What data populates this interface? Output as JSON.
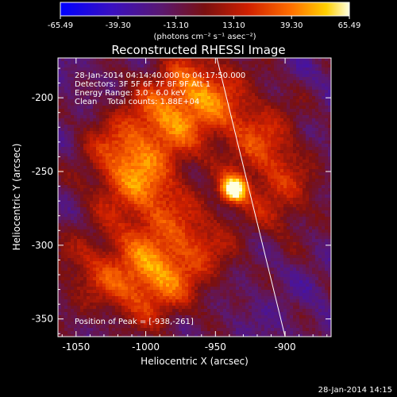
{
  "colorbar": {
    "ticks": [
      "-65.49",
      "-39.30",
      "-13.10",
      "13.10",
      "39.30",
      "65.49"
    ],
    "units": "(photons cm⁻² s⁻¹ asec⁻²)",
    "range": [
      -65.49,
      65.49
    ]
  },
  "chart_data": {
    "type": "heatmap",
    "title": "Reconstructed RHESSI Image",
    "xlabel": "Heliocentric X (arcsec)",
    "ylabel": "Heliocentric Y (arcsec)",
    "xlim": [
      -1063,
      -867
    ],
    "ylim": [
      -362,
      -173
    ],
    "x_ticks": [
      "-1050",
      "-1000",
      "-950",
      "-900"
    ],
    "y_ticks": [
      "-200",
      "-250",
      "-300",
      "-350"
    ],
    "info_lines": [
      "28-Jan-2014 04:14:40.000 to 04:17:50.000",
      "Detectors: 3F 5F 6F 7F 8F 9F Att 1",
      "Energy Range: 3.0 - 6.0 keV",
      "Clean    Total counts: 1.88E+04"
    ],
    "peak_label": "Position of Peak = [-938,-261]",
    "peak": {
      "x": -938,
      "y": -261,
      "value": 65.49
    },
    "limb_line": [
      [
        -949,
        -173
      ],
      [
        -900,
        -362
      ]
    ],
    "bright_sources": [
      {
        "x": -938,
        "y": -261,
        "value": 65
      },
      {
        "x": -998,
        "y": -323,
        "value": 40
      },
      {
        "x": -1018,
        "y": -238,
        "value": 28
      },
      {
        "x": -960,
        "y": -195,
        "value": 30
      },
      {
        "x": -985,
        "y": -210,
        "value": 25
      },
      {
        "x": -920,
        "y": -225,
        "value": 22
      },
      {
        "x": -905,
        "y": -265,
        "value": 18
      },
      {
        "x": -1000,
        "y": -265,
        "value": 24
      },
      {
        "x": -1040,
        "y": -315,
        "value": 15
      },
      {
        "x": -965,
        "y": -300,
        "value": 20
      }
    ]
  },
  "footer": {
    "date": "28-Jan-2014 14:15"
  }
}
